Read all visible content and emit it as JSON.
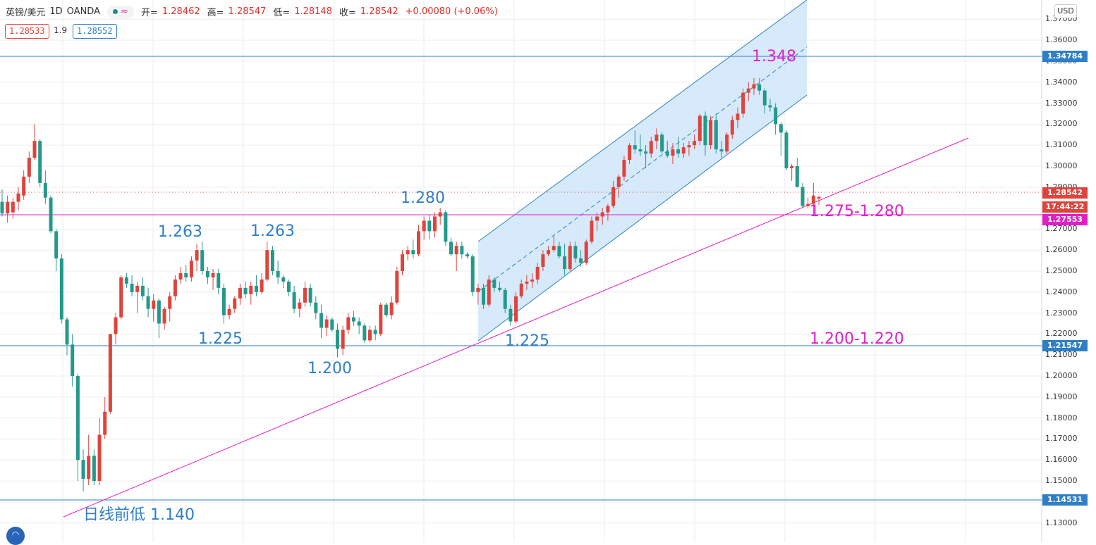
{
  "header": {
    "symbol": "英镑/美元",
    "interval": "1D",
    "broker": "OANDA",
    "open_label": "开=",
    "open": "1.28462",
    "high_label": "高=",
    "high": "1.28547",
    "low_label": "低=",
    "low": "1.28148",
    "close_label": "收=",
    "close": "1.28542",
    "change": "+0.00080 (+0.06%)"
  },
  "quote": {
    "sell": "1.28533",
    "spread": "1.9",
    "buy": "1.28552"
  },
  "currency": "USD",
  "price_tags": {
    "resistance_1": "1.34784",
    "current": "1.28542",
    "countdown": "17:44:22",
    "support_pink": "1.27553",
    "support_2": "1.21547",
    "support_3": "1.14531"
  },
  "colors": {
    "up": "#e0433b",
    "down": "#23998b",
    "blue_line": "#2e7fc6",
    "pink_line": "#e31ec8",
    "channel_fill": "#cfe6fa"
  },
  "annotations": {
    "a1263_left": "1.263",
    "a1263_right": "1.263",
    "a1280": "1.280",
    "a1225_left": "1.225",
    "a1200": "1.200",
    "a1225_right": "1.225",
    "a1348": "1.348",
    "zone_1275": "1.275-1.280",
    "zone_1200": "1.200-1.220",
    "prev_low": "日线前低 1.140"
  },
  "chart_data": {
    "type": "candlestick",
    "title": "英镑/美元 1D OANDA",
    "ylim": [
      1.125,
      1.375
    ],
    "y_ticks": [
      1.13,
      1.14,
      1.15,
      1.16,
      1.17,
      1.18,
      1.19,
      1.2,
      1.21,
      1.22,
      1.23,
      1.24,
      1.25,
      1.26,
      1.27,
      1.28,
      1.29,
      1.3,
      1.31,
      1.32,
      1.33,
      1.34,
      1.35,
      1.36,
      1.37
    ],
    "y_tick_labels": [
      "1.13000",
      "1.14000",
      "1.15000",
      "1.16000",
      "1.17000",
      "1.18000",
      "1.19000",
      "1.20000",
      "1.21000",
      "1.22000",
      "1.23000",
      "1.24000",
      "1.25000",
      "1.26000",
      "1.27000",
      "1.28000",
      "1.29000",
      "1.30000",
      "1.31000",
      "1.32000",
      "1.33000",
      "1.34000",
      "1.35000",
      "1.36000",
      "1.37000"
    ],
    "grid": true,
    "candles": [
      {
        "o": 1.283,
        "h": 1.289,
        "l": 1.276,
        "c": 1.2775
      },
      {
        "o": 1.2775,
        "h": 1.286,
        "l": 1.273,
        "c": 1.283
      },
      {
        "o": 1.278,
        "h": 1.285,
        "l": 1.275,
        "c": 1.283
      },
      {
        "o": 1.283,
        "h": 1.29,
        "l": 1.279,
        "c": 1.287
      },
      {
        "o": 1.286,
        "h": 1.298,
        "l": 1.284,
        "c": 1.295
      },
      {
        "o": 1.295,
        "h": 1.307,
        "l": 1.292,
        "c": 1.304
      },
      {
        "o": 1.304,
        "h": 1.32,
        "l": 1.303,
        "c": 1.312
      },
      {
        "o": 1.312,
        "h": 1.313,
        "l": 1.29,
        "c": 1.292
      },
      {
        "o": 1.292,
        "h": 1.298,
        "l": 1.282,
        "c": 1.285
      },
      {
        "o": 1.285,
        "h": 1.286,
        "l": 1.268,
        "c": 1.269
      },
      {
        "o": 1.269,
        "h": 1.27,
        "l": 1.25,
        "c": 1.256
      },
      {
        "o": 1.256,
        "h": 1.258,
        "l": 1.225,
        "c": 1.227
      },
      {
        "o": 1.227,
        "h": 1.228,
        "l": 1.21,
        "c": 1.215
      },
      {
        "o": 1.215,
        "h": 1.22,
        "l": 1.195,
        "c": 1.2
      },
      {
        "o": 1.2,
        "h": 1.201,
        "l": 1.15,
        "c": 1.16
      },
      {
        "o": 1.16,
        "h": 1.165,
        "l": 1.145,
        "c": 1.151
      },
      {
        "o": 1.151,
        "h": 1.172,
        "l": 1.148,
        "c": 1.162
      },
      {
        "o": 1.162,
        "h": 1.165,
        "l": 1.148,
        "c": 1.15
      },
      {
        "o": 1.15,
        "h": 1.18,
        "l": 1.148,
        "c": 1.172
      },
      {
        "o": 1.172,
        "h": 1.19,
        "l": 1.17,
        "c": 1.183
      },
      {
        "o": 1.183,
        "h": 1.22,
        "l": 1.182,
        "c": 1.22
      },
      {
        "o": 1.22,
        "h": 1.23,
        "l": 1.215,
        "c": 1.228
      },
      {
        "o": 1.228,
        "h": 1.248,
        "l": 1.227,
        "c": 1.247
      },
      {
        "o": 1.247,
        "h": 1.249,
        "l": 1.242,
        "c": 1.244
      },
      {
        "o": 1.244,
        "h": 1.248,
        "l": 1.238,
        "c": 1.24
      },
      {
        "o": 1.24,
        "h": 1.245,
        "l": 1.23,
        "c": 1.243
      },
      {
        "o": 1.243,
        "h": 1.247,
        "l": 1.236,
        "c": 1.238
      },
      {
        "o": 1.238,
        "h": 1.242,
        "l": 1.228,
        "c": 1.232
      },
      {
        "o": 1.232,
        "h": 1.239,
        "l": 1.226,
        "c": 1.236
      },
      {
        "o": 1.236,
        "h": 1.237,
        "l": 1.218,
        "c": 1.225
      },
      {
        "o": 1.225,
        "h": 1.233,
        "l": 1.222,
        "c": 1.232
      },
      {
        "o": 1.232,
        "h": 1.24,
        "l": 1.226,
        "c": 1.238
      },
      {
        "o": 1.238,
        "h": 1.248,
        "l": 1.236,
        "c": 1.246
      },
      {
        "o": 1.246,
        "h": 1.252,
        "l": 1.244,
        "c": 1.249
      },
      {
        "o": 1.249,
        "h": 1.253,
        "l": 1.245,
        "c": 1.247
      },
      {
        "o": 1.247,
        "h": 1.257,
        "l": 1.245,
        "c": 1.255
      },
      {
        "o": 1.255,
        "h": 1.263,
        "l": 1.25,
        "c": 1.26
      },
      {
        "o": 1.26,
        "h": 1.264,
        "l": 1.248,
        "c": 1.25
      },
      {
        "o": 1.25,
        "h": 1.252,
        "l": 1.244,
        "c": 1.247
      },
      {
        "o": 1.247,
        "h": 1.251,
        "l": 1.241,
        "c": 1.249
      },
      {
        "o": 1.249,
        "h": 1.251,
        "l": 1.239,
        "c": 1.242
      },
      {
        "o": 1.242,
        "h": 1.244,
        "l": 1.225,
        "c": 1.229
      },
      {
        "o": 1.229,
        "h": 1.234,
        "l": 1.227,
        "c": 1.232
      },
      {
        "o": 1.232,
        "h": 1.238,
        "l": 1.23,
        "c": 1.237
      },
      {
        "o": 1.237,
        "h": 1.244,
        "l": 1.234,
        "c": 1.242
      },
      {
        "o": 1.242,
        "h": 1.245,
        "l": 1.237,
        "c": 1.239
      },
      {
        "o": 1.239,
        "h": 1.245,
        "l": 1.234,
        "c": 1.243
      },
      {
        "o": 1.243,
        "h": 1.248,
        "l": 1.238,
        "c": 1.24
      },
      {
        "o": 1.24,
        "h": 1.249,
        "l": 1.239,
        "c": 1.246
      },
      {
        "o": 1.246,
        "h": 1.264,
        "l": 1.245,
        "c": 1.26
      },
      {
        "o": 1.26,
        "h": 1.262,
        "l": 1.248,
        "c": 1.25
      },
      {
        "o": 1.25,
        "h": 1.255,
        "l": 1.244,
        "c": 1.247
      },
      {
        "o": 1.247,
        "h": 1.248,
        "l": 1.242,
        "c": 1.245
      },
      {
        "o": 1.245,
        "h": 1.246,
        "l": 1.238,
        "c": 1.24
      },
      {
        "o": 1.24,
        "h": 1.243,
        "l": 1.23,
        "c": 1.232
      },
      {
        "o": 1.232,
        "h": 1.237,
        "l": 1.228,
        "c": 1.235
      },
      {
        "o": 1.235,
        "h": 1.245,
        "l": 1.233,
        "c": 1.242
      },
      {
        "o": 1.242,
        "h": 1.244,
        "l": 1.233,
        "c": 1.235
      },
      {
        "o": 1.235,
        "h": 1.238,
        "l": 1.227,
        "c": 1.23
      },
      {
        "o": 1.23,
        "h": 1.234,
        "l": 1.218,
        "c": 1.223
      },
      {
        "o": 1.223,
        "h": 1.229,
        "l": 1.219,
        "c": 1.227
      },
      {
        "o": 1.227,
        "h": 1.228,
        "l": 1.221,
        "c": 1.222
      },
      {
        "o": 1.222,
        "h": 1.225,
        "l": 1.209,
        "c": 1.213
      },
      {
        "o": 1.213,
        "h": 1.224,
        "l": 1.21,
        "c": 1.222
      },
      {
        "o": 1.222,
        "h": 1.23,
        "l": 1.22,
        "c": 1.228
      },
      {
        "o": 1.228,
        "h": 1.231,
        "l": 1.224,
        "c": 1.226
      },
      {
        "o": 1.226,
        "h": 1.228,
        "l": 1.22,
        "c": 1.224
      },
      {
        "o": 1.224,
        "h": 1.225,
        "l": 1.216,
        "c": 1.217
      },
      {
        "o": 1.217,
        "h": 1.224,
        "l": 1.216,
        "c": 1.222
      },
      {
        "o": 1.222,
        "h": 1.224,
        "l": 1.217,
        "c": 1.22
      },
      {
        "o": 1.22,
        "h": 1.235,
        "l": 1.219,
        "c": 1.234
      },
      {
        "o": 1.234,
        "h": 1.235,
        "l": 1.228,
        "c": 1.229
      },
      {
        "o": 1.229,
        "h": 1.238,
        "l": 1.227,
        "c": 1.235
      },
      {
        "o": 1.235,
        "h": 1.252,
        "l": 1.234,
        "c": 1.25
      },
      {
        "o": 1.25,
        "h": 1.26,
        "l": 1.248,
        "c": 1.258
      },
      {
        "o": 1.258,
        "h": 1.262,
        "l": 1.255,
        "c": 1.26
      },
      {
        "o": 1.26,
        "h": 1.265,
        "l": 1.256,
        "c": 1.258
      },
      {
        "o": 1.258,
        "h": 1.272,
        "l": 1.257,
        "c": 1.269
      },
      {
        "o": 1.269,
        "h": 1.276,
        "l": 1.265,
        "c": 1.274
      },
      {
        "o": 1.274,
        "h": 1.277,
        "l": 1.265,
        "c": 1.269
      },
      {
        "o": 1.269,
        "h": 1.278,
        "l": 1.266,
        "c": 1.276
      },
      {
        "o": 1.276,
        "h": 1.28,
        "l": 1.272,
        "c": 1.278
      },
      {
        "o": 1.278,
        "h": 1.279,
        "l": 1.262,
        "c": 1.264
      },
      {
        "o": 1.264,
        "h": 1.266,
        "l": 1.257,
        "c": 1.258
      },
      {
        "o": 1.258,
        "h": 1.264,
        "l": 1.25,
        "c": 1.262
      },
      {
        "o": 1.262,
        "h": 1.264,
        "l": 1.256,
        "c": 1.258
      },
      {
        "o": 1.258,
        "h": 1.259,
        "l": 1.256,
        "c": 1.257
      },
      {
        "o": 1.257,
        "h": 1.258,
        "l": 1.238,
        "c": 1.24
      },
      {
        "o": 1.24,
        "h": 1.244,
        "l": 1.234,
        "c": 1.242
      },
      {
        "o": 1.242,
        "h": 1.244,
        "l": 1.232,
        "c": 1.234
      },
      {
        "o": 1.234,
        "h": 1.248,
        "l": 1.233,
        "c": 1.246
      },
      {
        "o": 1.246,
        "h": 1.247,
        "l": 1.24,
        "c": 1.242
      },
      {
        "o": 1.242,
        "h": 1.245,
        "l": 1.24,
        "c": 1.241
      },
      {
        "o": 1.241,
        "h": 1.242,
        "l": 1.23,
        "c": 1.232
      },
      {
        "o": 1.232,
        "h": 1.234,
        "l": 1.224,
        "c": 1.226
      },
      {
        "o": 1.226,
        "h": 1.24,
        "l": 1.225,
        "c": 1.238
      },
      {
        "o": 1.238,
        "h": 1.246,
        "l": 1.237,
        "c": 1.244
      },
      {
        "o": 1.244,
        "h": 1.248,
        "l": 1.241,
        "c": 1.245
      },
      {
        "o": 1.245,
        "h": 1.249,
        "l": 1.242,
        "c": 1.246
      },
      {
        "o": 1.246,
        "h": 1.254,
        "l": 1.244,
        "c": 1.252
      },
      {
        "o": 1.252,
        "h": 1.26,
        "l": 1.25,
        "c": 1.258
      },
      {
        "o": 1.258,
        "h": 1.262,
        "l": 1.257,
        "c": 1.26
      },
      {
        "o": 1.26,
        "h": 1.267,
        "l": 1.259,
        "c": 1.262
      },
      {
        "o": 1.262,
        "h": 1.264,
        "l": 1.256,
        "c": 1.257
      },
      {
        "o": 1.257,
        "h": 1.263,
        "l": 1.248,
        "c": 1.251
      },
      {
        "o": 1.251,
        "h": 1.264,
        "l": 1.25,
        "c": 1.262
      },
      {
        "o": 1.262,
        "h": 1.264,
        "l": 1.254,
        "c": 1.256
      },
      {
        "o": 1.256,
        "h": 1.26,
        "l": 1.252,
        "c": 1.254
      },
      {
        "o": 1.254,
        "h": 1.265,
        "l": 1.253,
        "c": 1.264
      },
      {
        "o": 1.264,
        "h": 1.276,
        "l": 1.263,
        "c": 1.274
      },
      {
        "o": 1.274,
        "h": 1.278,
        "l": 1.269,
        "c": 1.276
      },
      {
        "o": 1.276,
        "h": 1.28,
        "l": 1.272,
        "c": 1.278
      },
      {
        "o": 1.278,
        "h": 1.282,
        "l": 1.274,
        "c": 1.281
      },
      {
        "o": 1.281,
        "h": 1.293,
        "l": 1.28,
        "c": 1.29
      },
      {
        "o": 1.29,
        "h": 1.296,
        "l": 1.285,
        "c": 1.295
      },
      {
        "o": 1.295,
        "h": 1.305,
        "l": 1.293,
        "c": 1.303
      },
      {
        "o": 1.303,
        "h": 1.311,
        "l": 1.301,
        "c": 1.31
      },
      {
        "o": 1.31,
        "h": 1.317,
        "l": 1.306,
        "c": 1.308
      },
      {
        "o": 1.308,
        "h": 1.315,
        "l": 1.305,
        "c": 1.307
      },
      {
        "o": 1.307,
        "h": 1.31,
        "l": 1.299,
        "c": 1.306
      },
      {
        "o": 1.306,
        "h": 1.314,
        "l": 1.304,
        "c": 1.312
      },
      {
        "o": 1.312,
        "h": 1.318,
        "l": 1.308,
        "c": 1.315
      },
      {
        "o": 1.315,
        "h": 1.316,
        "l": 1.306,
        "c": 1.307
      },
      {
        "o": 1.307,
        "h": 1.312,
        "l": 1.304,
        "c": 1.305
      },
      {
        "o": 1.305,
        "h": 1.311,
        "l": 1.301,
        "c": 1.308
      },
      {
        "o": 1.308,
        "h": 1.314,
        "l": 1.304,
        "c": 1.306
      },
      {
        "o": 1.306,
        "h": 1.311,
        "l": 1.304,
        "c": 1.309
      },
      {
        "o": 1.309,
        "h": 1.312,
        "l": 1.305,
        "c": 1.31
      },
      {
        "o": 1.31,
        "h": 1.315,
        "l": 1.308,
        "c": 1.312
      },
      {
        "o": 1.312,
        "h": 1.325,
        "l": 1.31,
        "c": 1.324
      },
      {
        "o": 1.324,
        "h": 1.326,
        "l": 1.305,
        "c": 1.31
      },
      {
        "o": 1.31,
        "h": 1.324,
        "l": 1.308,
        "c": 1.322
      },
      {
        "o": 1.322,
        "h": 1.325,
        "l": 1.306,
        "c": 1.308
      },
      {
        "o": 1.308,
        "h": 1.312,
        "l": 1.304,
        "c": 1.307
      },
      {
        "o": 1.307,
        "h": 1.316,
        "l": 1.306,
        "c": 1.315
      },
      {
        "o": 1.315,
        "h": 1.324,
        "l": 1.313,
        "c": 1.322
      },
      {
        "o": 1.322,
        "h": 1.328,
        "l": 1.318,
        "c": 1.325
      },
      {
        "o": 1.325,
        "h": 1.337,
        "l": 1.323,
        "c": 1.335
      },
      {
        "o": 1.335,
        "h": 1.34,
        "l": 1.331,
        "c": 1.337
      },
      {
        "o": 1.337,
        "h": 1.342,
        "l": 1.334,
        "c": 1.339
      },
      {
        "o": 1.339,
        "h": 1.342,
        "l": 1.334,
        "c": 1.336
      },
      {
        "o": 1.336,
        "h": 1.337,
        "l": 1.325,
        "c": 1.329
      },
      {
        "o": 1.329,
        "h": 1.332,
        "l": 1.326,
        "c": 1.328
      },
      {
        "o": 1.328,
        "h": 1.33,
        "l": 1.315,
        "c": 1.32
      },
      {
        "o": 1.32,
        "h": 1.321,
        "l": 1.305,
        "c": 1.316
      },
      {
        "o": 1.316,
        "h": 1.317,
        "l": 1.298,
        "c": 1.299
      },
      {
        "o": 1.299,
        "h": 1.301,
        "l": 1.293,
        "c": 1.3
      },
      {
        "o": 1.3,
        "h": 1.304,
        "l": 1.29,
        "c": 1.29
      },
      {
        "o": 1.29,
        "h": 1.292,
        "l": 1.28,
        "c": 1.281
      },
      {
        "o": 1.281,
        "h": 1.285,
        "l": 1.28,
        "c": 1.282
      },
      {
        "o": 1.282,
        "h": 1.292,
        "l": 1.277,
        "c": 1.286
      },
      {
        "o": 1.2846,
        "h": 1.2855,
        "l": 1.2815,
        "c": 1.2854
      }
    ]
  }
}
